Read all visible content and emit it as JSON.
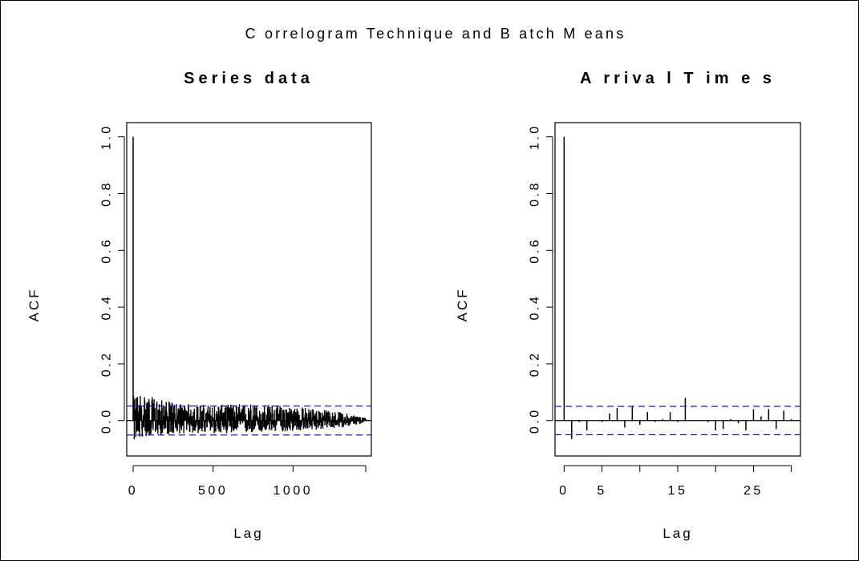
{
  "figure": {
    "title": "C orrelogram  Technique  and  B atch M eans"
  },
  "chart_data": [
    {
      "type": "bar",
      "subtype": "acf",
      "title": "Series  data",
      "xlabel": "Lag",
      "ylabel": "ACF",
      "xlim": [
        -40,
        1490
      ],
      "ylim": [
        -0.125,
        1.05
      ],
      "x_ticks": [
        0,
        500,
        1000
      ],
      "x_tick_labels": [
        "0",
        "500",
        "1000"
      ],
      "y_ticks": [
        0.0,
        0.2,
        0.4,
        0.6,
        0.8,
        1.0
      ],
      "y_tick_labels": [
        "0.0",
        "0.2",
        "0.4",
        "0.6",
        "0.8",
        "1.0"
      ],
      "confidence_band": 0.051,
      "band_color": "#0000cc",
      "bar_color": "#000000",
      "max_lag": 1455,
      "lag0_value": 1.0,
      "approx_envelope": {
        "lags": [
          1,
          50,
          100,
          200,
          300,
          500,
          700,
          900,
          1100,
          1300,
          1455
        ],
        "upper": [
          0.085,
          0.1,
          0.085,
          0.07,
          0.06,
          0.055,
          0.06,
          0.055,
          0.045,
          0.03,
          0.01
        ],
        "lower": [
          -0.075,
          -0.06,
          -0.055,
          -0.05,
          -0.045,
          -0.045,
          -0.045,
          -0.04,
          -0.035,
          -0.025,
          -0.01
        ]
      }
    },
    {
      "type": "bar",
      "subtype": "acf",
      "title": "A rriva l T im e s",
      "xlabel": "Lag",
      "ylabel": "ACF",
      "xlim": [
        -1.2,
        31.2
      ],
      "ylim": [
        -0.125,
        1.05
      ],
      "x_ticks": [
        0,
        5,
        15,
        25
      ],
      "x_tick_labels": [
        "0",
        "5",
        "15",
        "25"
      ],
      "y_ticks": [
        0.0,
        0.2,
        0.4,
        0.6,
        0.8,
        1.0
      ],
      "y_tick_labels": [
        "0.0",
        "0.2",
        "0.4",
        "0.6",
        "0.8",
        "1.0"
      ],
      "confidence_band": 0.05,
      "band_color": "#0000cc",
      "bar_color": "#000000",
      "lags": [
        0,
        1,
        2,
        3,
        4,
        5,
        6,
        7,
        8,
        9,
        10,
        11,
        12,
        13,
        14,
        15,
        16,
        17,
        18,
        19,
        20,
        21,
        22,
        23,
        24,
        25,
        26,
        27,
        28,
        29,
        30
      ],
      "values": [
        1.0,
        -0.065,
        -0.005,
        -0.035,
        0.0,
        -0.005,
        0.025,
        0.045,
        -0.025,
        0.05,
        -0.015,
        0.03,
        -0.005,
        0.005,
        0.03,
        -0.005,
        0.08,
        0.0,
        0.0,
        -0.005,
        -0.035,
        -0.03,
        0.005,
        -0.01,
        -0.035,
        0.04,
        0.015,
        0.04,
        -0.03,
        0.035,
        0.005
      ]
    }
  ]
}
